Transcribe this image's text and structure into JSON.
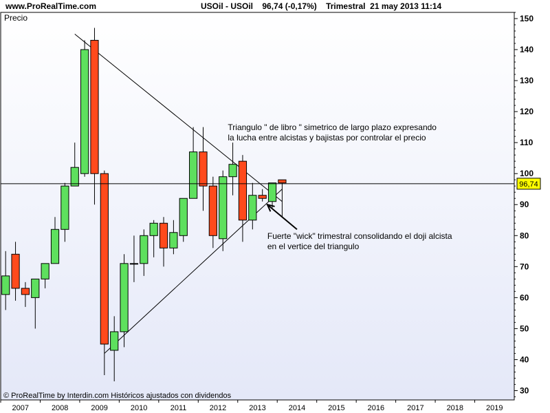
{
  "header": {
    "site": "www.ProRealTime.com",
    "symbol": "USOil - USOil",
    "last_price": "96,74",
    "change": "(-0,17%)",
    "period": "Trimestral",
    "datetime": "21 may 2013 11:14"
  },
  "footer": {
    "credit": "© ProRealTime by Interdin.com  Históricos ajustados con dividendos"
  },
  "colors": {
    "up": "#5ee05e",
    "down": "#ff4a1c",
    "background_top": "#ffffff",
    "background_bottom": "#e4e8f8",
    "price_tag": "#ffff00"
  },
  "chart_data": {
    "type": "candlestick",
    "panel_label": "Precio",
    "ylim": [
      27,
      152
    ],
    "y_ticks": [
      30,
      40,
      50,
      60,
      70,
      80,
      90,
      100,
      110,
      120,
      130,
      140,
      150
    ],
    "x_labels": [
      "2007",
      "2008",
      "2009",
      "2010",
      "2011",
      "2012",
      "2013",
      "2014",
      "2015",
      "2016",
      "2017",
      "2018",
      "2019"
    ],
    "x_range": [
      "2007-01",
      "2019-12"
    ],
    "current_price_value": 96.74,
    "current_price_label": "96,74",
    "candles": [
      {
        "date": "2007-01",
        "open": 61,
        "high": 75,
        "low": 56,
        "close": 67
      },
      {
        "date": "2007-04",
        "open": 74,
        "high": 78,
        "low": 59,
        "close": 63
      },
      {
        "date": "2007-07",
        "open": 63,
        "high": 65,
        "low": 57,
        "close": 61
      },
      {
        "date": "2007-10",
        "open": 60,
        "high": 66,
        "low": 50,
        "close": 66
      },
      {
        "date": "2008-01",
        "open": 66,
        "high": 71,
        "low": 63,
        "close": 71
      },
      {
        "date": "2008-04",
        "open": 71,
        "high": 86,
        "low": 71,
        "close": 82
      },
      {
        "date": "2008-07",
        "open": 82,
        "high": 97,
        "low": 78,
        "close": 96
      },
      {
        "date": "2008-10",
        "open": 96,
        "high": 110,
        "low": 96,
        "close": 102
      },
      {
        "date": "2009-01",
        "open": 100,
        "high": 143,
        "low": 99,
        "close": 140
      },
      {
        "date": "2009-04",
        "open": 143,
        "high": 147,
        "low": 90,
        "close": 100
      },
      {
        "date": "2009-07",
        "open": 100,
        "high": 101,
        "low": 35,
        "close": 45
      },
      {
        "date": "2009-10",
        "open": 43,
        "high": 54,
        "low": 33,
        "close": 49
      },
      {
        "date": "2010-01",
        "open": 49,
        "high": 74,
        "low": 44,
        "close": 71
      },
      {
        "date": "2010-04",
        "open": 71,
        "high": 80,
        "low": 65,
        "close": 71
      },
      {
        "date": "2010-07",
        "open": 71,
        "high": 82,
        "low": 67,
        "close": 80
      },
      {
        "date": "2010-10",
        "open": 80,
        "high": 85,
        "low": 73,
        "close": 84
      },
      {
        "date": "2011-01",
        "open": 84,
        "high": 86,
        "low": 70,
        "close": 76
      },
      {
        "date": "2011-04",
        "open": 76,
        "high": 85,
        "low": 74,
        "close": 81
      },
      {
        "date": "2011-07",
        "open": 80,
        "high": 92,
        "low": 78,
        "close": 92
      },
      {
        "date": "2011-10",
        "open": 92,
        "high": 115,
        "low": 92,
        "close": 107
      },
      {
        "date": "2012-01",
        "open": 107,
        "high": 115,
        "low": 88,
        "close": 96
      },
      {
        "date": "2012-04",
        "open": 96,
        "high": 99,
        "low": 76,
        "close": 80
      },
      {
        "date": "2012-07",
        "open": 79,
        "high": 101,
        "low": 75,
        "close": 99
      },
      {
        "date": "2012-10",
        "open": 99,
        "high": 110,
        "low": 93,
        "close": 103
      },
      {
        "date": "2013-01",
        "open": 104,
        "high": 106,
        "low": 78,
        "close": 85
      },
      {
        "date": "2013-04",
        "open": 85,
        "high": 97,
        "low": 82,
        "close": 93
      },
      {
        "date": "2013-07",
        "open": 93,
        "high": 95,
        "low": 91,
        "close": 92
      },
      {
        "date": "2013-10",
        "open": 91,
        "high": 97,
        "low": 89,
        "close": 97
      },
      {
        "date": "2014-01",
        "open": 98,
        "high": 98,
        "low": 86,
        "close": 97
      }
    ],
    "trendlines": [
      {
        "name": "upper",
        "from": {
          "date": "2008-10",
          "value": 145
        },
        "to": {
          "date": "2014-01",
          "value": 91
        }
      },
      {
        "name": "lower",
        "from": {
          "date": "2009-07",
          "value": 42
        },
        "to": {
          "date": "2014-01",
          "value": 95
        }
      }
    ],
    "arrow": {
      "from": {
        "date": "2014-07",
        "value": 82
      },
      "to": {
        "date": "2013-10",
        "value": 90
      }
    },
    "annotations": [
      {
        "name": "triangle-note",
        "date": "2012-10",
        "value": 114,
        "lines": [
          "Triangulo \" de libro \" simetrico de largo plazo expresando",
          "la lucha entre alcistas y bajistas por controlar el precio"
        ]
      },
      {
        "name": "wick-note",
        "date": "2013-10",
        "value": 79,
        "lines": [
          "Fuerte \"wick\" trimestral consolidando el doji alcista",
          "en el vertice del triangulo"
        ]
      }
    ]
  }
}
